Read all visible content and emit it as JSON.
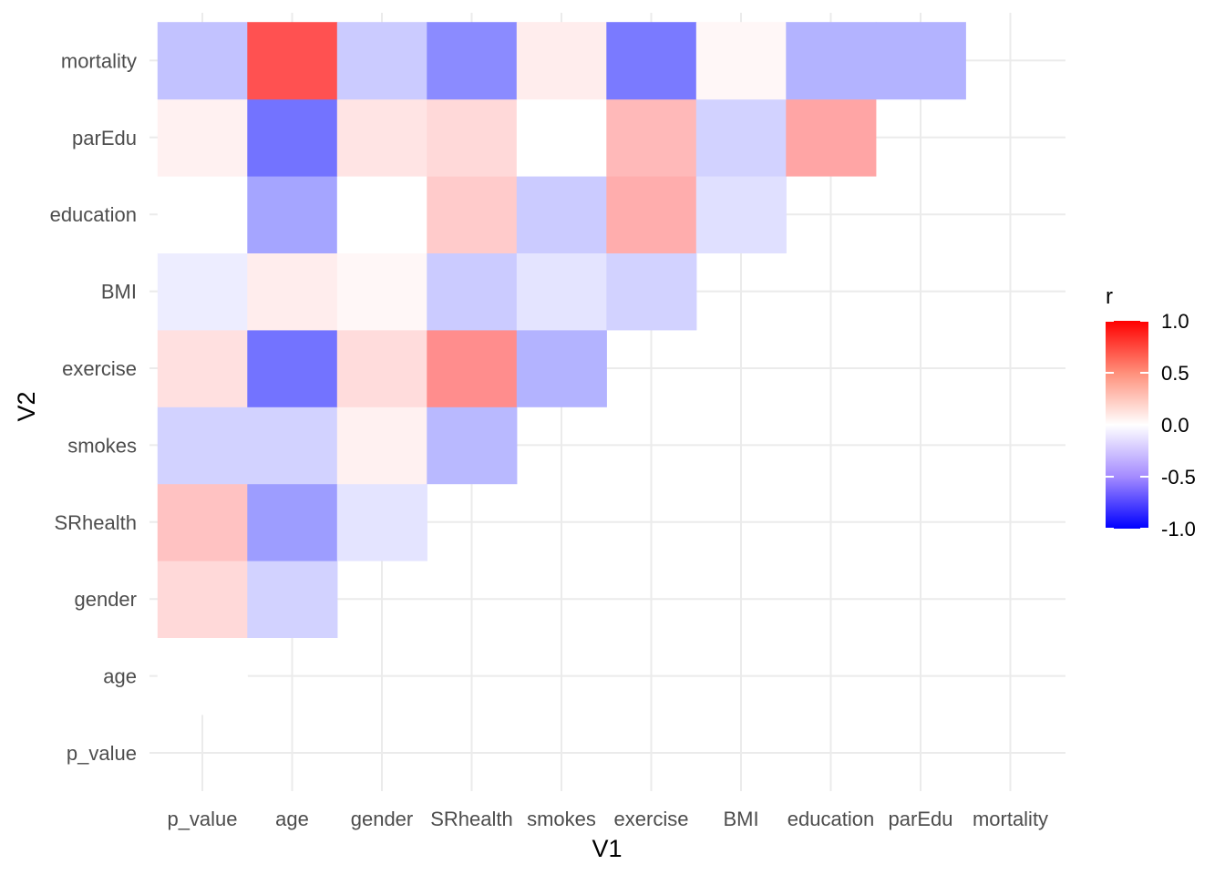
{
  "chart_data": {
    "type": "heatmap",
    "title": "",
    "xlabel": "V1",
    "ylabel": "V2",
    "x_categories": [
      "p_value",
      "age",
      "gender",
      "SRhealth",
      "smokes",
      "exercise",
      "BMI",
      "education",
      "parEdu",
      "mortality"
    ],
    "y_categories": [
      "p_value",
      "age",
      "gender",
      "SRhealth",
      "smokes",
      "exercise",
      "BMI",
      "education",
      "parEdu",
      "mortality"
    ],
    "grid": true,
    "color_scale": {
      "low": "#0000FF",
      "mid": "#FFFFFF",
      "high": "#FF0000",
      "limits": [
        -1,
        1
      ]
    },
    "legend": {
      "title": "r",
      "position": "right",
      "breaks": [
        1.0,
        0.5,
        0.0,
        -0.5,
        -1.0
      ],
      "labels": [
        "1.0",
        "0.5",
        "0.0",
        "-0.5",
        "-1.0"
      ]
    },
    "cells": [
      {
        "x": "p_value",
        "y": "age",
        "r": 0.0
      },
      {
        "x": "p_value",
        "y": "gender",
        "r": 0.08
      },
      {
        "x": "age",
        "y": "gender",
        "r": -0.1
      },
      {
        "x": "p_value",
        "y": "SRhealth",
        "r": 0.15
      },
      {
        "x": "age",
        "y": "SRhealth",
        "r": -0.28
      },
      {
        "x": "gender",
        "y": "SRhealth",
        "r": -0.05
      },
      {
        "x": "p_value",
        "y": "smokes",
        "r": -0.1
      },
      {
        "x": "age",
        "y": "smokes",
        "r": -0.1
      },
      {
        "x": "gender",
        "y": "smokes",
        "r": 0.02
      },
      {
        "x": "SRhealth",
        "y": "smokes",
        "r": -0.18
      },
      {
        "x": "p_value",
        "y": "exercise",
        "r": 0.06
      },
      {
        "x": "age",
        "y": "exercise",
        "r": -0.45
      },
      {
        "x": "gender",
        "y": "exercise",
        "r": 0.07
      },
      {
        "x": "SRhealth",
        "y": "exercise",
        "r": 0.34
      },
      {
        "x": "smokes",
        "y": "exercise",
        "r": -0.2
      },
      {
        "x": "p_value",
        "y": "BMI",
        "r": -0.03
      },
      {
        "x": "age",
        "y": "BMI",
        "r": 0.03
      },
      {
        "x": "gender",
        "y": "BMI",
        "r": 0.01
      },
      {
        "x": "SRhealth",
        "y": "BMI",
        "r": -0.12
      },
      {
        "x": "smokes",
        "y": "BMI",
        "r": -0.05
      },
      {
        "x": "exercise",
        "y": "BMI",
        "r": -0.1
      },
      {
        "x": "p_value",
        "y": "education",
        "r": 0.0
      },
      {
        "x": "age",
        "y": "education",
        "r": -0.25
      },
      {
        "x": "gender",
        "y": "education",
        "r": 0.0
      },
      {
        "x": "SRhealth",
        "y": "education",
        "r": 0.12
      },
      {
        "x": "smokes",
        "y": "education",
        "r": -0.12
      },
      {
        "x": "exercise",
        "y": "education",
        "r": 0.22
      },
      {
        "x": "BMI",
        "y": "education",
        "r": -0.06
      },
      {
        "x": "p_value",
        "y": "parEdu",
        "r": 0.02
      },
      {
        "x": "age",
        "y": "parEdu",
        "r": -0.45
      },
      {
        "x": "gender",
        "y": "parEdu",
        "r": 0.05
      },
      {
        "x": "SRhealth",
        "y": "parEdu",
        "r": 0.08
      },
      {
        "x": "smokes",
        "y": "parEdu",
        "r": 0.0
      },
      {
        "x": "exercise",
        "y": "parEdu",
        "r": 0.18
      },
      {
        "x": "BMI",
        "y": "parEdu",
        "r": -0.1
      },
      {
        "x": "education",
        "y": "parEdu",
        "r": 0.25
      },
      {
        "x": "p_value",
        "y": "mortality",
        "r": -0.15
      },
      {
        "x": "age",
        "y": "mortality",
        "r": 0.6
      },
      {
        "x": "gender",
        "y": "mortality",
        "r": -0.12
      },
      {
        "x": "SRhealth",
        "y": "mortality",
        "r": -0.35
      },
      {
        "x": "smokes",
        "y": "mortality",
        "r": 0.03
      },
      {
        "x": "exercise",
        "y": "mortality",
        "r": -0.42
      },
      {
        "x": "BMI",
        "y": "mortality",
        "r": 0.01
      },
      {
        "x": "education",
        "y": "mortality",
        "r": -0.2
      },
      {
        "x": "parEdu",
        "y": "mortality",
        "r": -0.2
      }
    ]
  }
}
